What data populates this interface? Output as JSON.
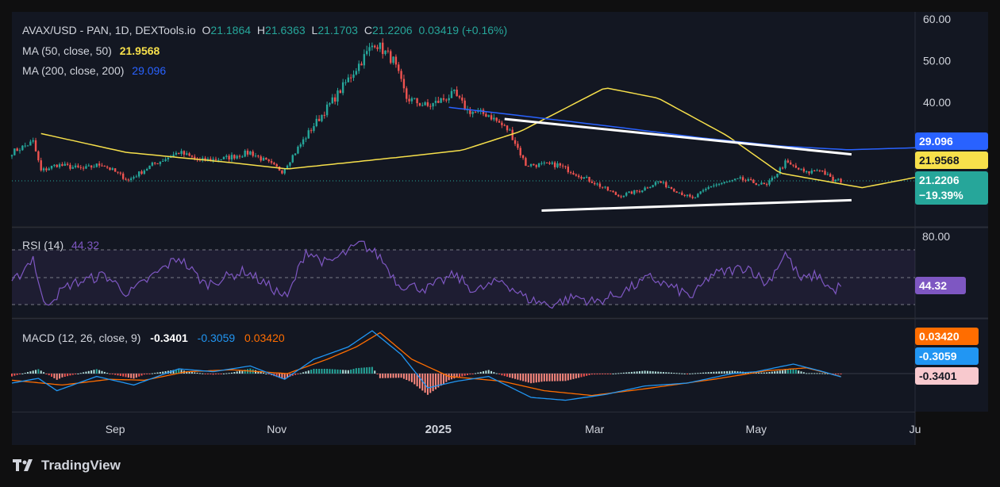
{
  "header": {
    "symbol_line": "AVAX/USD - PAN, 1D, DEXTools.io",
    "o_label": "O",
    "o_value": "21.1864",
    "h_label": "H",
    "h_value": "21.6363",
    "l_label": "L",
    "l_value": "21.1703",
    "c_label": "C",
    "c_value": "21.2206",
    "change": "0.03419 (+0.16%)",
    "ma50_label": "MA (50, close, 50)",
    "ma50_value": "21.9568",
    "ma200_label": "MA (200, close, 200)",
    "ma200_value": "29.096"
  },
  "rsi_panel": {
    "label": "RSI (14)",
    "value": "44.32",
    "badge": "44.32",
    "axis_top": "80.00"
  },
  "macd_panel": {
    "label": "MACD (12, 26, close, 9)",
    "macd_value": "-0.3401",
    "signal_value": "-0.3059",
    "hist_value": "0.03420",
    "badge_hist": "0.03420",
    "badge_signal": "-0.3059",
    "badge_macd": "-0.3401"
  },
  "price_badges": {
    "ma200": "29.096",
    "ma50": "21.9568",
    "close": "21.2206",
    "change_pct": "−19.39%"
  },
  "branding": {
    "logo_text": "TradingView"
  },
  "colors": {
    "up": "#26a69a",
    "down": "#ef5350",
    "ma50": "#f7e04b",
    "ma200": "#2962ff",
    "rsi": "#7e57c2",
    "macd": "#2196f3",
    "signal": "#ff6d00",
    "trendline": "#ffffff"
  },
  "chart_data": [
    {
      "type": "candlestick",
      "title": "AVAX/USD - PAN, 1D, DEXTools.io",
      "y_axis_ticks": [
        "60.00",
        "50.00",
        "40.00"
      ],
      "ylim": [
        13,
        61
      ],
      "x_ticks": [
        "Sep",
        "Nov",
        "2025",
        "Mar",
        "May",
        "Ju"
      ],
      "x_range": [
        "2024-07-24",
        "2025-06-30"
      ],
      "keypoints_close": [
        [
          "2024-07-24",
          28.0
        ],
        [
          "2024-08-01",
          30.5
        ],
        [
          "2024-08-04",
          23.5
        ],
        [
          "2024-08-10",
          25.0
        ],
        [
          "2024-08-20",
          24.0
        ],
        [
          "2024-08-27",
          25.2
        ],
        [
          "2024-09-06",
          21.3
        ],
        [
          "2024-09-15",
          25.0
        ],
        [
          "2024-09-25",
          28.0
        ],
        [
          "2024-10-03",
          26.0
        ],
        [
          "2024-10-12",
          26.5
        ],
        [
          "2024-10-22",
          28.0
        ],
        [
          "2024-11-03",
          23.5
        ],
        [
          "2024-11-15",
          34.5
        ],
        [
          "2024-11-24",
          42.0
        ],
        [
          "2024-12-03",
          50.0
        ],
        [
          "2024-12-08",
          54.5
        ],
        [
          "2024-12-15",
          50.0
        ],
        [
          "2024-12-20",
          41.0
        ],
        [
          "2024-12-28",
          39.0
        ],
        [
          "2025-01-07",
          42.0
        ],
        [
          "2025-01-12",
          38.0
        ],
        [
          "2025-01-20",
          37.0
        ],
        [
          "2025-01-28",
          33.0
        ],
        [
          "2025-02-03",
          25.0
        ],
        [
          "2025-02-15",
          25.0
        ],
        [
          "2025-02-28",
          21.0
        ],
        [
          "2025-03-10",
          17.5
        ],
        [
          "2025-03-18",
          18.8
        ],
        [
          "2025-03-25",
          21.0
        ],
        [
          "2025-04-07",
          16.8
        ],
        [
          "2025-04-14",
          20.0
        ],
        [
          "2025-04-25",
          21.5
        ],
        [
          "2025-05-05",
          20.0
        ],
        [
          "2025-05-12",
          25.5
        ],
        [
          "2025-05-20",
          23.0
        ],
        [
          "2025-05-25",
          24.0
        ],
        [
          "2025-05-30",
          21.2
        ],
        [
          "2025-06-02",
          21.22
        ]
      ],
      "ma50": [
        [
          "2024-08-04",
          32.5
        ],
        [
          "2024-09-05",
          28.0
        ],
        [
          "2024-10-15",
          25.5
        ],
        [
          "2024-11-05",
          24.0
        ],
        [
          "2024-12-20",
          27.0
        ],
        [
          "2025-01-10",
          28.5
        ],
        [
          "2025-02-01",
          33.0
        ],
        [
          "2025-03-05",
          43.5
        ],
        [
          "2025-03-25",
          41.0
        ],
        [
          "2025-04-20",
          32.0
        ],
        [
          "2025-05-10",
          23.0
        ],
        [
          "2025-06-10",
          19.5
        ],
        [
          "2025-06-30",
          21.9568
        ]
      ],
      "ma200": [
        [
          "2025-01-05",
          38.8
        ],
        [
          "2025-02-05",
          36.5
        ],
        [
          "2025-03-10",
          34.0
        ],
        [
          "2025-04-10",
          31.5
        ],
        [
          "2025-05-10",
          29.5
        ],
        [
          "2025-06-05",
          28.6
        ],
        [
          "2025-06-30",
          29.096
        ]
      ],
      "trendlines": [
        {
          "from": [
            "2025-01-26",
            36.0
          ],
          "to": [
            "2025-06-06",
            27.5
          ]
        },
        {
          "from": [
            "2025-02-09",
            14.0
          ],
          "to": [
            "2025-06-06",
            16.5
          ]
        }
      ]
    },
    {
      "type": "line",
      "title": "RSI (14)",
      "ylim": [
        15,
        85
      ],
      "bands": [
        70,
        50,
        30
      ],
      "keypoints": [
        [
          "2024-07-24",
          45
        ],
        [
          "2024-08-01",
          65
        ],
        [
          "2024-08-05",
          30
        ],
        [
          "2024-08-15",
          45
        ],
        [
          "2024-08-28",
          52
        ],
        [
          "2024-09-06",
          38
        ],
        [
          "2024-09-20",
          58
        ],
        [
          "2024-09-25",
          65
        ],
        [
          "2024-10-05",
          45
        ],
        [
          "2024-10-20",
          55
        ],
        [
          "2024-11-01",
          40
        ],
        [
          "2024-11-05",
          35
        ],
        [
          "2024-11-12",
          70
        ],
        [
          "2024-11-20",
          60
        ],
        [
          "2024-12-03",
          75
        ],
        [
          "2024-12-10",
          65
        ],
        [
          "2024-12-17",
          45
        ],
        [
          "2024-12-28",
          42
        ],
        [
          "2025-01-07",
          52
        ],
        [
          "2025-01-15",
          40
        ],
        [
          "2025-01-25",
          48
        ],
        [
          "2025-02-03",
          35
        ],
        [
          "2025-02-12",
          30
        ],
        [
          "2025-02-22",
          36
        ],
        [
          "2025-03-01",
          32
        ],
        [
          "2025-03-10",
          38
        ],
        [
          "2025-03-22",
          50
        ],
        [
          "2025-04-07",
          36
        ],
        [
          "2025-04-14",
          52
        ],
        [
          "2025-04-28",
          58
        ],
        [
          "2025-05-05",
          45
        ],
        [
          "2025-05-12",
          68
        ],
        [
          "2025-05-18",
          48
        ],
        [
          "2025-05-24",
          52
        ],
        [
          "2025-05-30",
          40
        ],
        [
          "2025-06-02",
          44.32
        ]
      ]
    },
    {
      "type": "macd",
      "title": "MACD (12, 26, close, 9)",
      "ylim": [
        -5,
        5
      ],
      "macd_keypoints": [
        [
          "2024-07-24",
          -1.0
        ],
        [
          "2024-08-03",
          -0.5
        ],
        [
          "2024-08-10",
          -1.8
        ],
        [
          "2024-08-25",
          -0.3
        ],
        [
          "2024-09-08",
          -1.2
        ],
        [
          "2024-09-25",
          0.5
        ],
        [
          "2024-10-08",
          0.2
        ],
        [
          "2024-10-22",
          0.8
        ],
        [
          "2024-11-04",
          -0.6
        ],
        [
          "2024-11-15",
          1.5
        ],
        [
          "2024-11-28",
          2.8
        ],
        [
          "2024-12-07",
          4.5
        ],
        [
          "2024-12-18",
          2.0
        ],
        [
          "2024-12-28",
          -1.5
        ],
        [
          "2025-01-08",
          -0.8
        ],
        [
          "2025-01-20",
          -0.3
        ],
        [
          "2025-02-05",
          -2.5
        ],
        [
          "2025-02-18",
          -2.8
        ],
        [
          "2025-03-05",
          -2.2
        ],
        [
          "2025-03-20",
          -1.3
        ],
        [
          "2025-04-05",
          -1.0
        ],
        [
          "2025-04-22",
          0.0
        ],
        [
          "2025-05-01",
          0.2
        ],
        [
          "2025-05-15",
          1.0
        ],
        [
          "2025-05-25",
          0.3
        ],
        [
          "2025-06-02",
          -0.3401
        ]
      ],
      "signal_keypoints": [
        [
          "2024-07-24",
          -0.7
        ],
        [
          "2024-08-12",
          -1.2
        ],
        [
          "2024-08-30",
          -0.6
        ],
        [
          "2024-09-12",
          -0.7
        ],
        [
          "2024-09-28",
          0.2
        ],
        [
          "2024-10-15",
          0.4
        ],
        [
          "2024-11-05",
          0.0
        ],
        [
          "2024-11-20",
          1.5
        ],
        [
          "2024-12-01",
          2.8
        ],
        [
          "2024-12-10",
          4.3
        ],
        [
          "2024-12-22",
          1.5
        ],
        [
          "2025-01-05",
          -0.3
        ],
        [
          "2025-01-25",
          -0.8
        ],
        [
          "2025-02-10",
          -1.8
        ],
        [
          "2025-02-28",
          -2.3
        ],
        [
          "2025-03-20",
          -1.6
        ],
        [
          "2025-04-15",
          -0.6
        ],
        [
          "2025-05-05",
          0.3
        ],
        [
          "2025-05-20",
          0.6
        ],
        [
          "2025-06-02",
          -0.3059
        ]
      ],
      "histogram_last": 0.0342
    }
  ]
}
